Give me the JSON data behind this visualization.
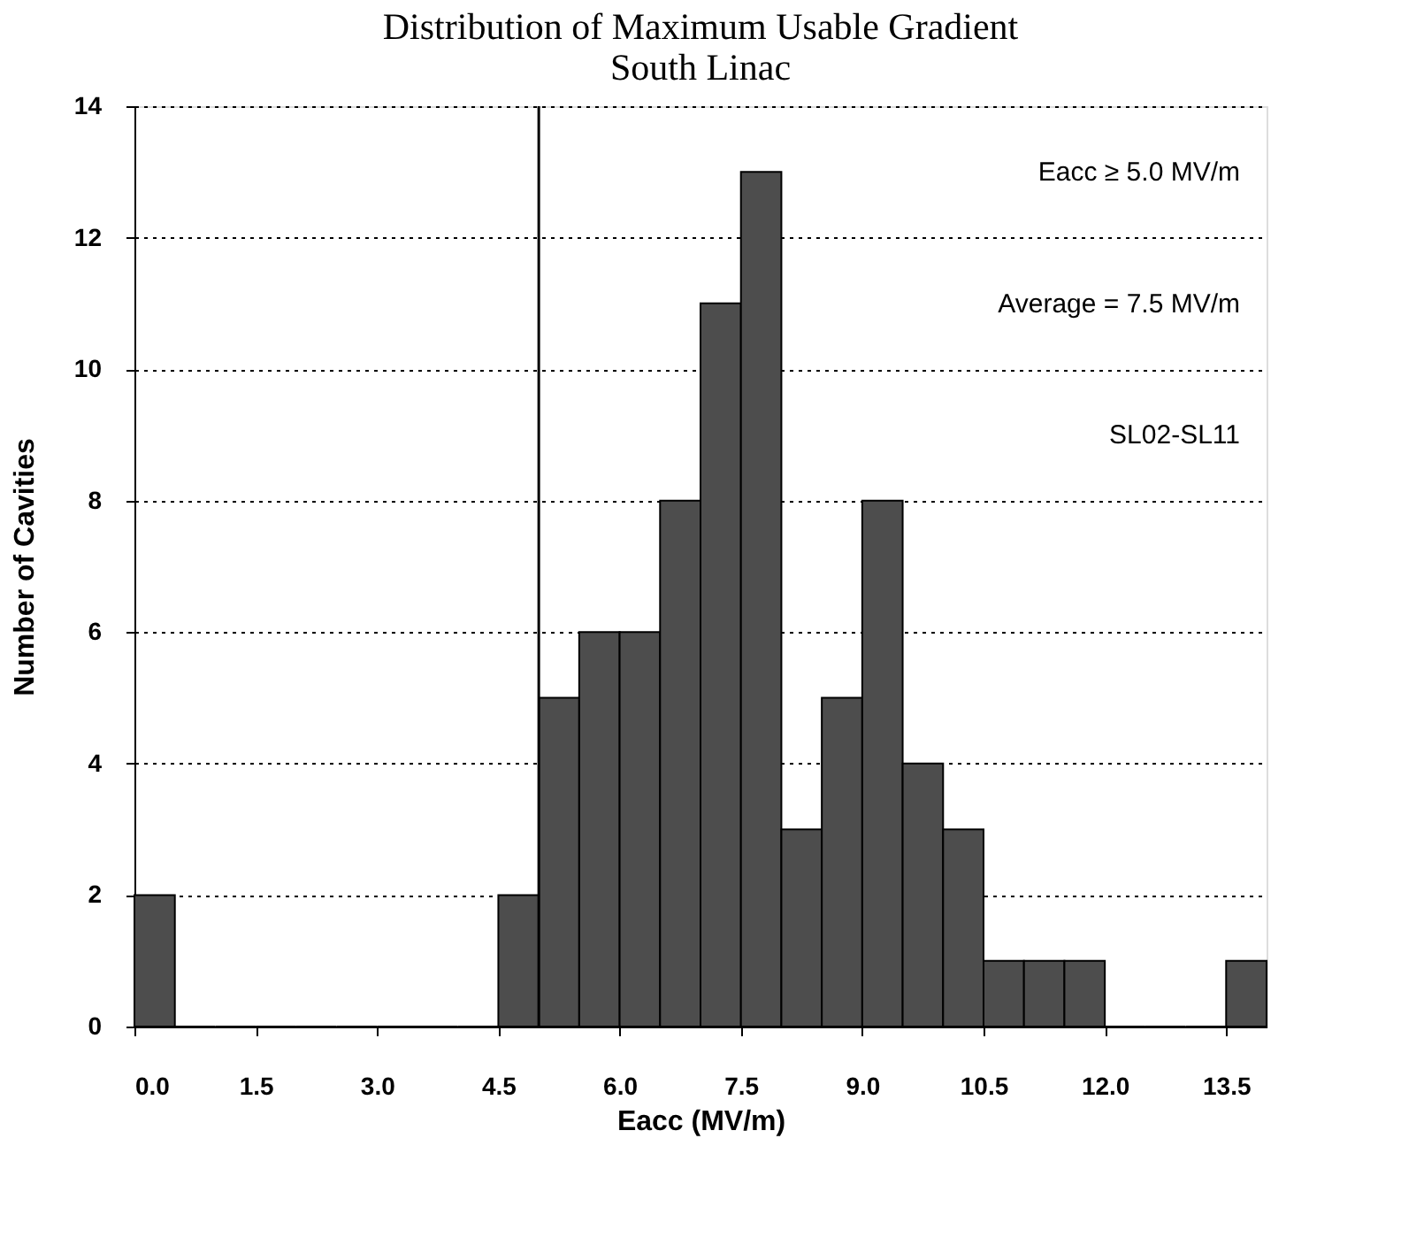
{
  "chart_data": {
    "type": "histogram",
    "title": "Distribution of Maximum Usable Gradient",
    "subtitle": "South Linac",
    "xlabel": "Eacc (MV/m)",
    "ylabel": "Number of Cavities",
    "bins": [
      0,
      0.5,
      1,
      1.5,
      2,
      2.5,
      3,
      3.5,
      4,
      4.5,
      5,
      5.5,
      6,
      6.5,
      7,
      7.5,
      8,
      8.5,
      9,
      9.5,
      10,
      10.5,
      11,
      11.5,
      12,
      12.5,
      13,
      13.5,
      14
    ],
    "values": [
      2,
      0,
      0,
      0,
      0,
      0,
      0,
      0,
      0,
      2,
      5,
      6,
      6,
      8,
      11,
      13,
      3,
      5,
      8,
      4,
      3,
      1,
      1,
      1,
      0,
      0,
      0,
      1
    ],
    "color": "#4d4d4d",
    "xlim": [
      0,
      14
    ],
    "xticks": [
      {
        "value": 0,
        "label": "0.0"
      },
      {
        "value": 1.5,
        "label": "1.5"
      },
      {
        "value": 3,
        "label": "3.0"
      },
      {
        "value": 4.5,
        "label": "4.5"
      },
      {
        "value": 6,
        "label": "6.0"
      },
      {
        "value": 7.5,
        "label": "7.5"
      },
      {
        "value": 9,
        "label": "9.0"
      },
      {
        "value": 10.5,
        "label": "10.5"
      },
      {
        "value": 12,
        "label": "12.0"
      },
      {
        "value": 13.5,
        "label": "13.5"
      }
    ],
    "ylim": [
      0,
      14
    ],
    "yticks": [
      0,
      2,
      4,
      6,
      8,
      10,
      12,
      14
    ],
    "grid": "y",
    "ref_lines": [
      {
        "axis": "x",
        "value": 5,
        "color": "#000000",
        "line_style": "solid"
      }
    ],
    "annotations": [
      "Eacc ≥ 5.0 MV/m",
      "Average = 7.5 MV/m",
      "SL02-SL11"
    ]
  }
}
